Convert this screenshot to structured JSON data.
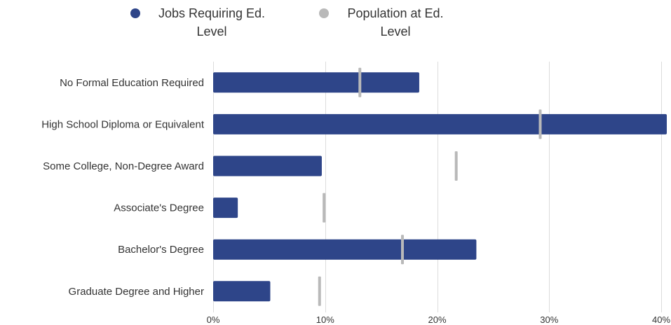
{
  "chart_data": {
    "type": "bar",
    "orientation": "horizontal",
    "categories": [
      "No Formal Education Required",
      "High School Diploma or Equivalent",
      "Some College, Non-Degree Award",
      "Associate's Degree",
      "Bachelor's Degree",
      "Graduate Degree and Higher"
    ],
    "series": [
      {
        "name": "Jobs Requiring Ed. Level",
        "legend_lines": [
          "Jobs Requiring Ed.",
          "Level"
        ],
        "style": "bar",
        "color": "#2e4589",
        "values": [
          18.4,
          40.5,
          9.7,
          2.2,
          23.5,
          5.1
        ]
      },
      {
        "name": "Population at Ed. Level",
        "legend_lines": [
          "Population at Ed.",
          "Level"
        ],
        "style": "marker",
        "color": "#b9b9b9",
        "values": [
          13.1,
          29.2,
          21.7,
          9.9,
          16.9,
          9.5
        ]
      }
    ],
    "x_ticks": [
      "0%",
      "10%",
      "20%",
      "30%",
      "40%"
    ],
    "tick_values": [
      0,
      10,
      20,
      30,
      40
    ],
    "xlim": [
      0,
      40.5
    ],
    "unit": "%",
    "grid": true,
    "legend_position": "top",
    "title": "",
    "xlabel": "",
    "ylabel": ""
  }
}
